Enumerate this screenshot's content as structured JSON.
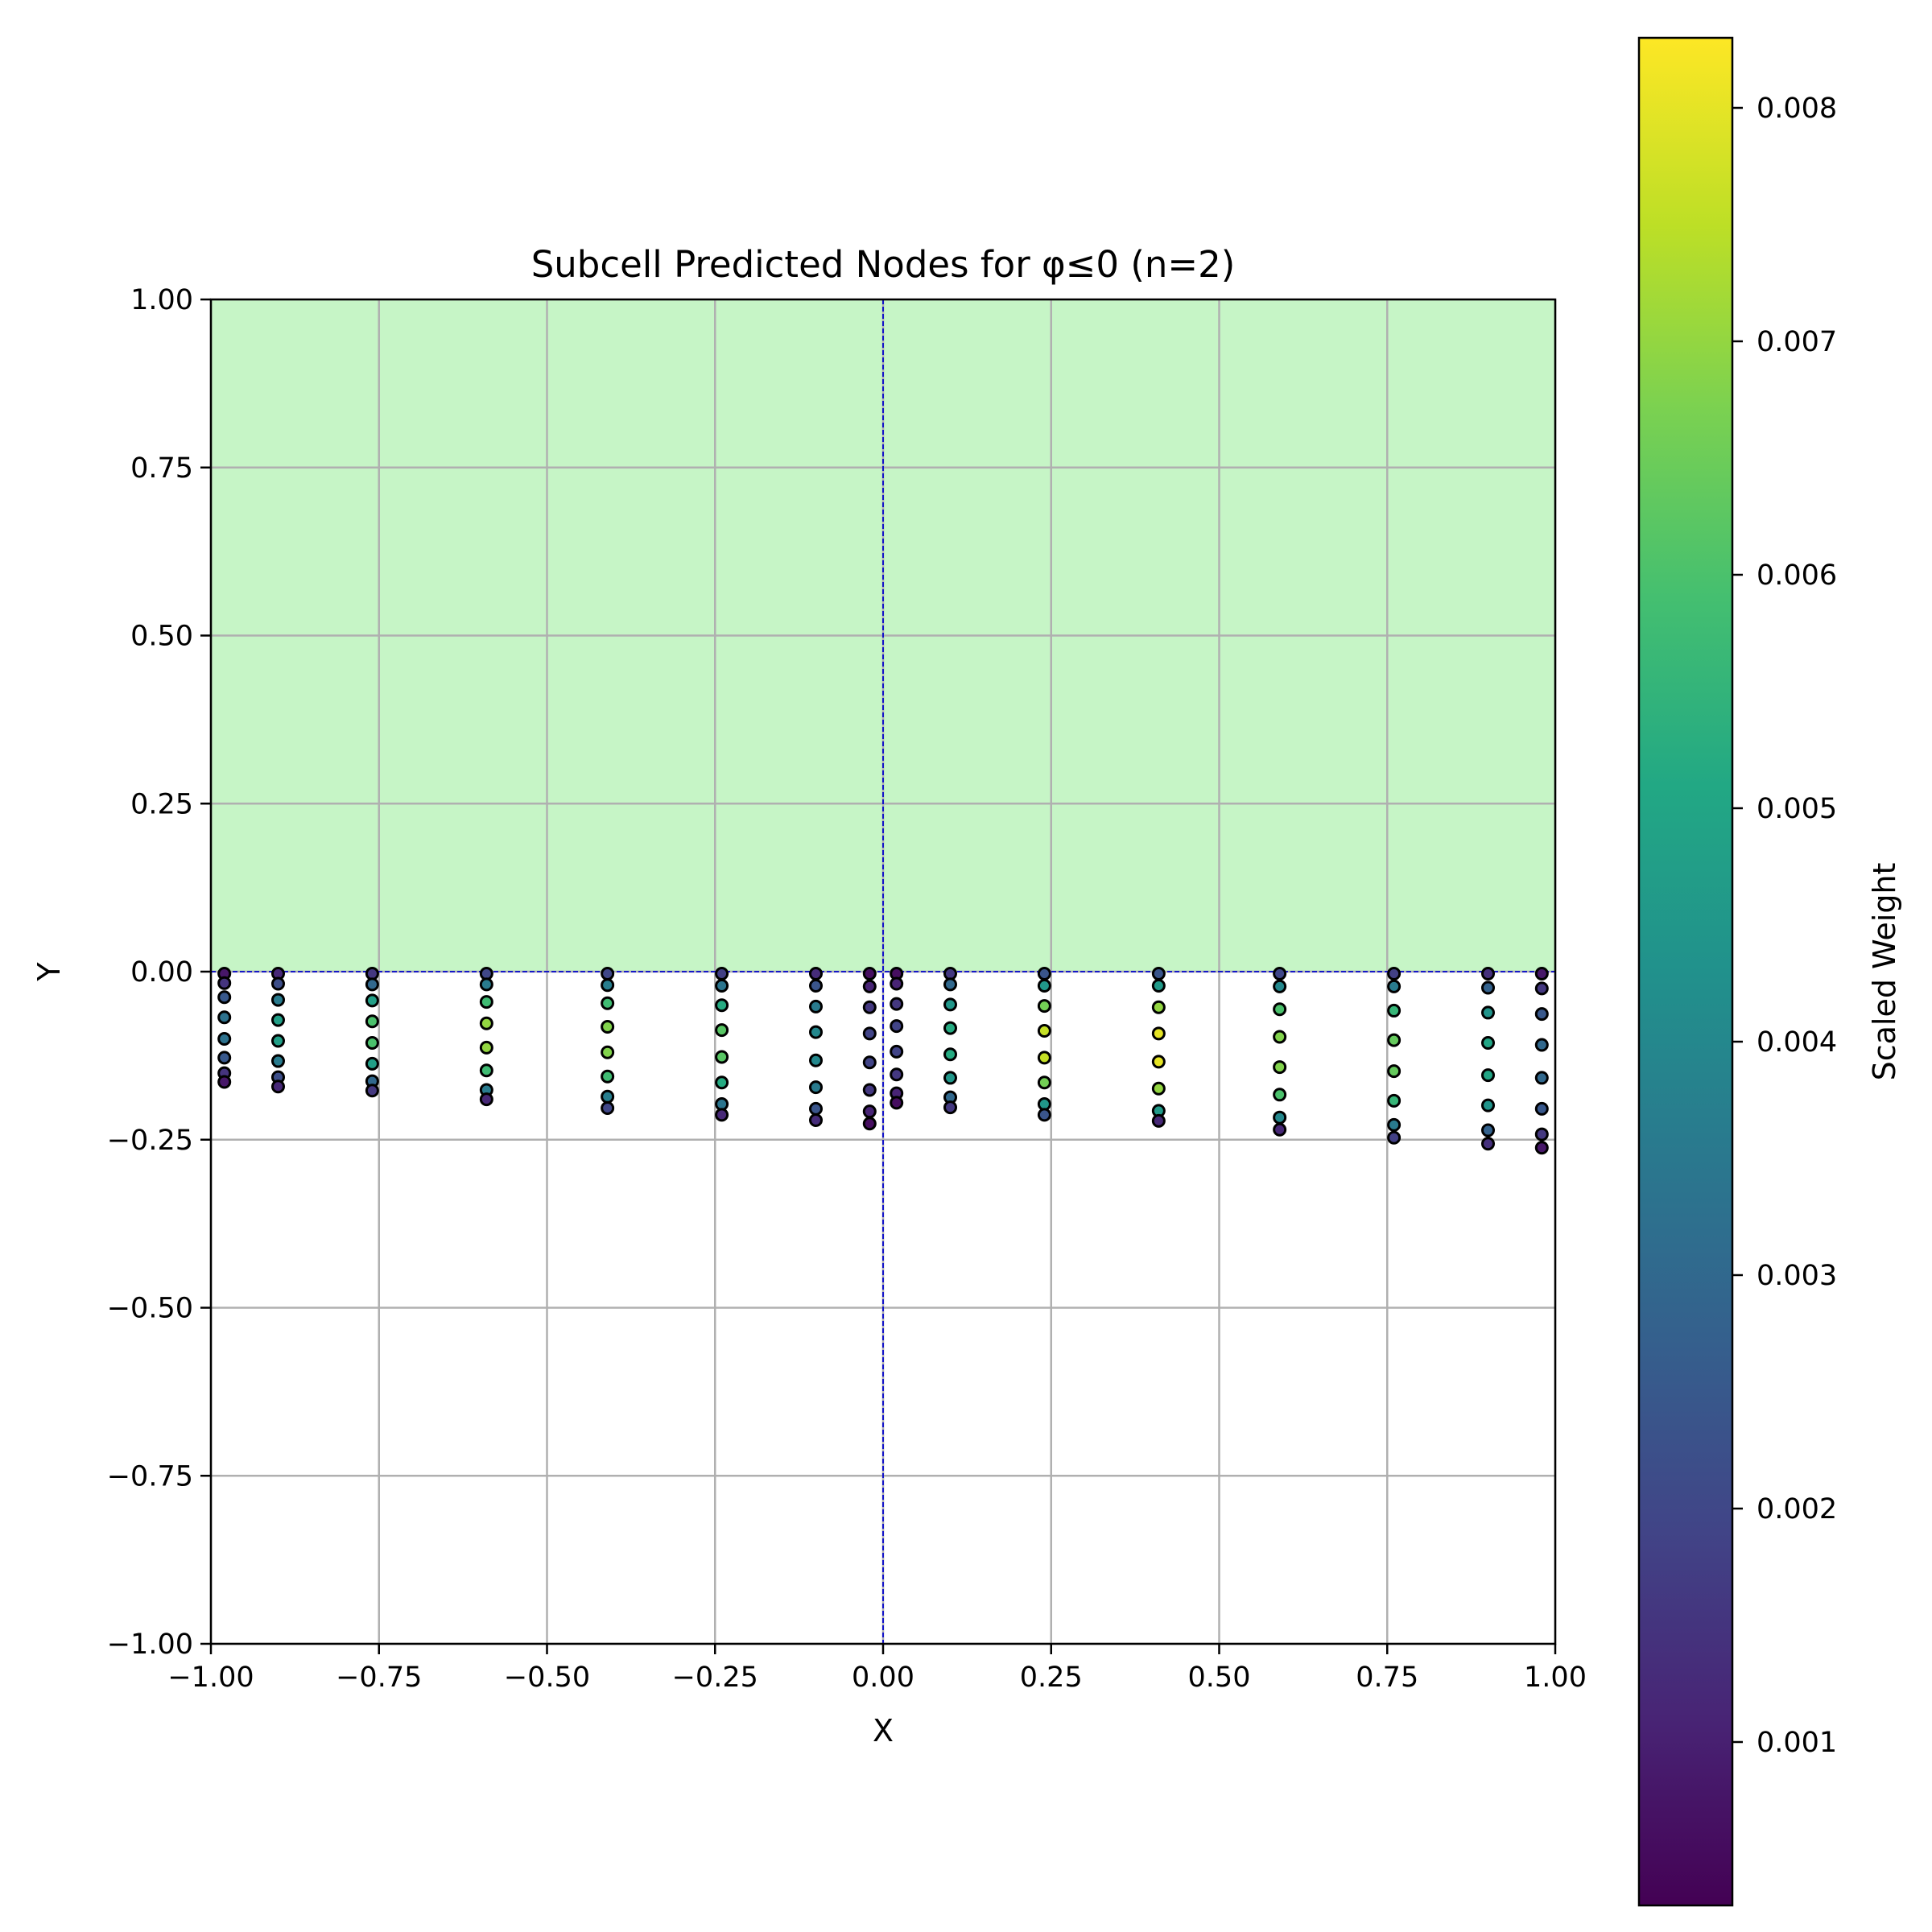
{
  "chart_data": {
    "type": "scatter",
    "title": "Subcell Predicted Nodes for φ≤0 (n=2)",
    "xlabel": "X",
    "ylabel": "Y",
    "xlim": [
      -1.0,
      1.0
    ],
    "ylim": [
      -1.0,
      1.0
    ],
    "grid": true,
    "x_ticks": [
      "−1.00",
      "−0.75",
      "−0.50",
      "−0.25",
      "0.00",
      "0.25",
      "0.50",
      "0.75",
      "1.00"
    ],
    "y_ticks": [
      "−1.00",
      "−0.75",
      "−0.50",
      "−0.25",
      "0.00",
      "0.25",
      "0.50",
      "0.75",
      "1.00"
    ],
    "region": {
      "name": "shaded region y ≥ 0",
      "y_range": [
        0,
        1
      ],
      "color": "#c6f5c6"
    },
    "reference_lines": {
      "x": 0,
      "y": 0,
      "color": "#0000cc",
      "style": "dashed"
    },
    "colorbar": {
      "label": "Scaled Weight",
      "colormap": "viridis",
      "range": [
        0.0003,
        0.0083
      ],
      "ticks": [
        "0.001",
        "0.002",
        "0.003",
        "0.004",
        "0.005",
        "0.006",
        "0.007",
        "0.008"
      ]
    },
    "columns": [
      {
        "x": -0.98,
        "y": [
          -0.003,
          -0.017,
          -0.038,
          -0.068,
          -0.1,
          -0.128,
          -0.151,
          -0.164
        ],
        "w": [
          0.0008,
          0.0015,
          0.0025,
          0.0033,
          0.0033,
          0.0025,
          0.0015,
          0.0008
        ]
      },
      {
        "x": -0.9,
        "y": [
          -0.003,
          -0.018,
          -0.042,
          -0.072,
          -0.103,
          -0.133,
          -0.157,
          -0.171
        ],
        "w": [
          0.0012,
          0.0022,
          0.0036,
          0.0048,
          0.0048,
          0.0036,
          0.0022,
          0.0012
        ]
      },
      {
        "x": -0.76,
        "y": [
          -0.003,
          -0.019,
          -0.043,
          -0.074,
          -0.106,
          -0.137,
          -0.163,
          -0.177
        ],
        "w": [
          0.0016,
          0.003,
          0.0048,
          0.006,
          0.006,
          0.0048,
          0.003,
          0.0016
        ]
      },
      {
        "x": -0.59,
        "y": [
          -0.003,
          -0.019,
          -0.045,
          -0.077,
          -0.113,
          -0.147,
          -0.176,
          -0.19
        ],
        "w": [
          0.002,
          0.0036,
          0.0058,
          0.007,
          0.007,
          0.0058,
          0.0036,
          0.0012
        ]
      },
      {
        "x": -0.41,
        "y": [
          -0.003,
          -0.02,
          -0.047,
          -0.082,
          -0.12,
          -0.156,
          -0.186,
          -0.203
        ],
        "w": [
          0.002,
          0.0037,
          0.0058,
          0.0068,
          0.0068,
          0.0058,
          0.0037,
          0.002
        ]
      },
      {
        "x": -0.24,
        "y": [
          -0.003,
          -0.021,
          -0.05,
          -0.087,
          -0.127,
          -0.165,
          -0.197,
          -0.213
        ],
        "w": [
          0.0018,
          0.0034,
          0.0052,
          0.0062,
          0.0062,
          0.0052,
          0.0034,
          0.0012
        ]
      },
      {
        "x": -0.1,
        "y": [
          -0.003,
          -0.021,
          -0.052,
          -0.09,
          -0.132,
          -0.172,
          -0.204,
          -0.221
        ],
        "w": [
          0.0013,
          0.0024,
          0.0036,
          0.004,
          0.004,
          0.0036,
          0.0024,
          0.0013
        ]
      },
      {
        "x": -0.02,
        "y": [
          -0.003,
          -0.022,
          -0.053,
          -0.092,
          -0.135,
          -0.176,
          -0.208,
          -0.226
        ],
        "w": [
          0.0006,
          0.0011,
          0.0016,
          0.0019,
          0.0019,
          0.0016,
          0.0011,
          0.0006
        ]
      },
      {
        "x": 0.02,
        "y": [
          -0.003,
          -0.018,
          -0.048,
          -0.081,
          -0.119,
          -0.153,
          -0.181,
          -0.195
        ],
        "w": [
          0.0006,
          0.0011,
          0.0016,
          0.0019,
          0.0019,
          0.0016,
          0.0011,
          0.0006
        ]
      },
      {
        "x": 0.1,
        "y": [
          -0.003,
          -0.019,
          -0.049,
          -0.084,
          -0.123,
          -0.158,
          -0.187,
          -0.202
        ],
        "w": [
          0.0016,
          0.003,
          0.0045,
          0.0052,
          0.0052,
          0.0045,
          0.003,
          0.0016
        ]
      },
      {
        "x": 0.24,
        "y": [
          -0.003,
          -0.021,
          -0.051,
          -0.088,
          -0.128,
          -0.165,
          -0.197,
          -0.213
        ],
        "w": [
          0.0024,
          0.0045,
          0.0066,
          0.0076,
          0.0076,
          0.0066,
          0.0045,
          0.0024
        ]
      },
      {
        "x": 0.41,
        "y": [
          -0.003,
          -0.021,
          -0.053,
          -0.092,
          -0.134,
          -0.174,
          -0.207,
          -0.222
        ],
        "w": [
          0.0024,
          0.0046,
          0.007,
          0.008,
          0.008,
          0.007,
          0.0046,
          0.0012
        ]
      },
      {
        "x": 0.59,
        "y": [
          -0.003,
          -0.022,
          -0.056,
          -0.097,
          -0.142,
          -0.183,
          -0.217,
          -0.235
        ],
        "w": [
          0.002,
          0.004,
          0.006,
          0.0068,
          0.0068,
          0.006,
          0.004,
          0.0012
        ]
      },
      {
        "x": 0.76,
        "y": [
          -0.003,
          -0.022,
          -0.058,
          -0.102,
          -0.148,
          -0.192,
          -0.228,
          -0.247
        ],
        "w": [
          0.0018,
          0.0036,
          0.0056,
          0.0064,
          0.0064,
          0.0056,
          0.0036,
          0.0018
        ]
      },
      {
        "x": 0.9,
        "y": [
          -0.003,
          -0.024,
          -0.061,
          -0.106,
          -0.154,
          -0.199,
          -0.236,
          -0.256
        ],
        "w": [
          0.0014,
          0.0028,
          0.0044,
          0.005,
          0.005,
          0.0044,
          0.0028,
          0.0014
        ]
      },
      {
        "x": 0.98,
        "y": [
          -0.003,
          -0.025,
          -0.063,
          -0.109,
          -0.158,
          -0.204,
          -0.242,
          -0.262
        ],
        "w": [
          0.0008,
          0.0016,
          0.0025,
          0.003,
          0.003,
          0.0025,
          0.0016,
          0.0008
        ]
      }
    ]
  }
}
